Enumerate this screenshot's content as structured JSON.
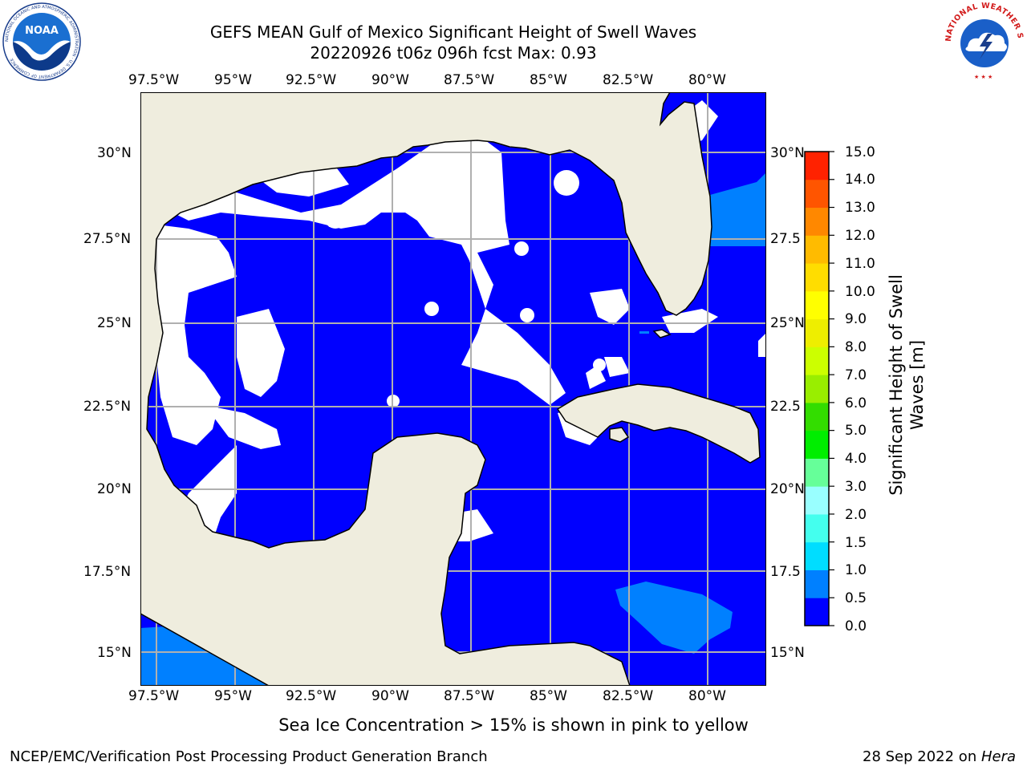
{
  "header": {
    "title_line1": "GEFS MEAN Gulf of Mexico Significant Height of Swell Waves",
    "title_line2": "20220926 t06z 096h fcst   Max: 0.93"
  },
  "logos": {
    "left": "NOAA",
    "left_ring_text": "NATIONAL OCEANIC AND ATMOSPHERIC ADMINISTRATION · U.S. DEPARTMENT OF COMMERCE",
    "right_ring_text": "NATIONAL WEATHER SERVICE"
  },
  "map": {
    "lon_labels": [
      "97.5°W",
      "95°W",
      "92.5°W",
      "90°W",
      "87.5°W",
      "85°W",
      "82.5°W",
      "80°W"
    ],
    "lat_labels": [
      "30°N",
      "27.5°N",
      "25°N",
      "22.5°N",
      "20°N",
      "17.5°N",
      "15°N"
    ],
    "lat_labels_right": [
      "30°N",
      "27.5",
      "25°N",
      "22.5",
      "20°N",
      "17.5",
      "15°N"
    ],
    "colors": {
      "land": "#efedde",
      "grid": "#b0b0b0",
      "swell_low": "#0000ff",
      "swell_mid": "#0080ff"
    }
  },
  "colorbar": {
    "label_line1": "Significant Height of Swell",
    "label_line2": "Waves [m]",
    "ticks": [
      "15.0",
      "14.0",
      "13.0",
      "12.0",
      "11.0",
      "10.0",
      "9.0",
      "8.0",
      "7.0",
      "6.0",
      "5.0",
      "4.0",
      "3.0",
      "2.0",
      "1.5",
      "1.0",
      "0.5",
      "0.0"
    ],
    "colors": [
      "#0000ff",
      "#0080ff",
      "#00ddff",
      "#44ffee",
      "#99ffff",
      "#66ff99",
      "#00ee00",
      "#33dd00",
      "#99ee00",
      "#ccff00",
      "#eeee00",
      "#ffff00",
      "#ffdd00",
      "#ffbb00",
      "#ff8800",
      "#ff5500",
      "#ff2200"
    ]
  },
  "note": "Sea Ice Concentration > 15% is shown in pink to yellow",
  "footer": {
    "left": "NCEP/EMC/Verification Post Processing Product Generation Branch",
    "right_prefix": "28 Sep 2022 on ",
    "right_host": "Hera"
  }
}
